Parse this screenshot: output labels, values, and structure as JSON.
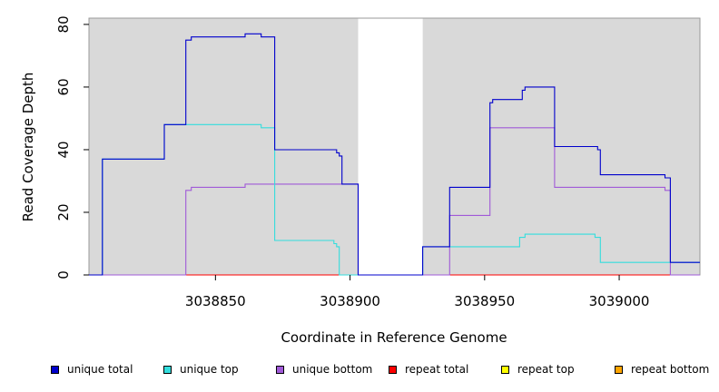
{
  "chart_data": {
    "type": "line",
    "title": "",
    "xlabel": "Coordinate in Reference Genome",
    "ylabel": "Read Coverage Depth",
    "xlim": [
      3038803,
      3039030
    ],
    "ylim": [
      0,
      82
    ],
    "x_ticks": [
      3038850,
      3038900,
      3038950,
      3039000
    ],
    "y_ticks": [
      0,
      20,
      40,
      60,
      80
    ],
    "shaded_regions": [
      [
        3038803,
        3038903
      ],
      [
        3038927,
        3039030
      ]
    ],
    "plot_background": "#d9d9d9",
    "legend_position": "bottom",
    "series": [
      {
        "name": "unique total",
        "color": "#0000cc",
        "x": [
          3038803,
          3038808,
          3038831,
          3038839,
          3038841,
          3038861,
          3038867,
          3038872,
          3038895,
          3038896,
          3038897,
          3038903,
          3038927,
          3038937,
          3038952,
          3038953,
          3038964,
          3038965,
          3038976,
          3038992,
          3038993,
          3039017,
          3039019,
          3039030
        ],
        "y": [
          0,
          37,
          48,
          75,
          76,
          77,
          76,
          40,
          39,
          38,
          29,
          0,
          9,
          28,
          55,
          56,
          59,
          60,
          41,
          40,
          32,
          31,
          4,
          4
        ]
      },
      {
        "name": "unique top",
        "color": "#33dddd",
        "x": [
          3038803,
          3038808,
          3038831,
          3038867,
          3038872,
          3038894,
          3038895,
          3038896,
          3038927,
          3038937,
          3038963,
          3038965,
          3038991,
          3038993,
          3039019,
          3039030
        ],
        "y": [
          0,
          37,
          48,
          47,
          11,
          10,
          9,
          0,
          9,
          9,
          12,
          13,
          12,
          4,
          4,
          4
        ]
      },
      {
        "name": "unique bottom",
        "color": "#a05ad8",
        "x": [
          3038803,
          3038839,
          3038841,
          3038861,
          3038897,
          3038903,
          3038937,
          3038952,
          3038976,
          3039017,
          3039019,
          3039030
        ],
        "y": [
          0,
          27,
          28,
          29,
          29,
          0,
          19,
          47,
          28,
          27,
          0,
          0
        ]
      },
      {
        "name": "repeat total",
        "color": "#ff0000",
        "x": [
          3038803,
          3039030
        ],
        "y": [
          0,
          0
        ]
      },
      {
        "name": "repeat top",
        "color": "#ffff00",
        "x": [
          3038803,
          3039030
        ],
        "y": [
          0,
          0
        ]
      },
      {
        "name": "repeat bottom",
        "color": "#ffa500",
        "x": [
          3038803,
          3039030
        ],
        "y": [
          0,
          0
        ]
      }
    ]
  }
}
